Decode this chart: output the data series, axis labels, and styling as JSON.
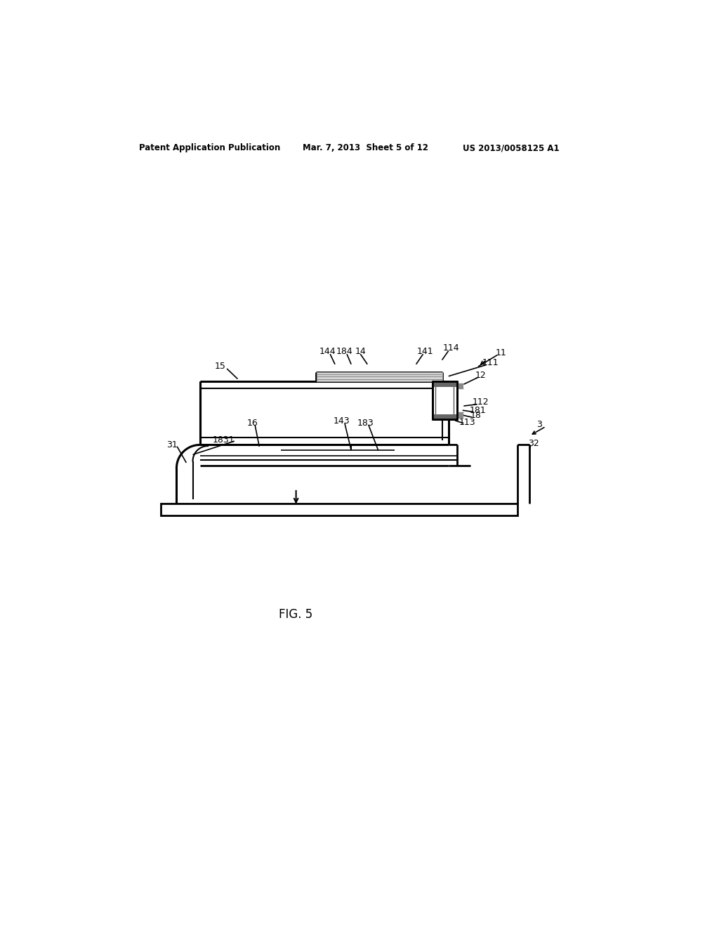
{
  "bg_color": "#ffffff",
  "line_color": "#000000",
  "fig_label": "FIG. 5",
  "header_left": "Patent Application Publication",
  "header_center": "Mar. 7, 2013  Sheet 5 of 12",
  "header_right": "US 2013/0058125 A1"
}
